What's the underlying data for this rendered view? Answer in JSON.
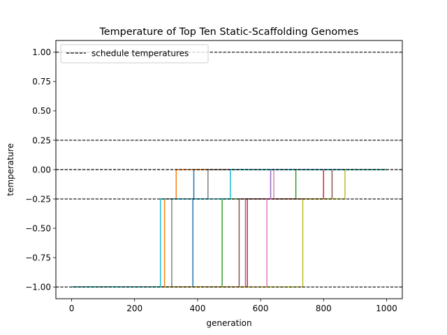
{
  "chart_data": {
    "type": "line",
    "title": "Temperature of Top Ten Static-Scaffolding Genomes",
    "xlabel": "generation",
    "ylabel": "temperature",
    "xlim": [
      -50,
      1050
    ],
    "ylim": [
      -1.1,
      1.1
    ],
    "xticks": [
      0,
      200,
      400,
      600,
      800,
      1000
    ],
    "xtick_labels": [
      "0",
      "200",
      "400",
      "600",
      "800",
      "1000"
    ],
    "yticks": [
      1.0,
      0.75,
      0.5,
      0.25,
      0.0,
      -0.25,
      -0.5,
      -0.75,
      -1.0
    ],
    "ytick_labels": [
      "1.00",
      "0.75",
      "0.50",
      "0.25",
      "0.00",
      "−0.25",
      "−0.50",
      "−0.75",
      "−1.00"
    ],
    "grid": false,
    "legend": {
      "placement": "top-left",
      "entries": [
        "schedule temperatures"
      ]
    },
    "schedule_temperatures": {
      "values": [
        1.0,
        0.25,
        0.0,
        -0.25,
        -1.0
      ],
      "color": "#000000",
      "style": "dashed"
    },
    "series": [
      {
        "color": "#1f77b4",
        "steps": [
          [
            0,
            -1.0
          ],
          [
            385,
            -0.25
          ],
          [
            388,
            0.0
          ],
          [
            1000,
            0.0
          ]
        ]
      },
      {
        "color": "#ff7f0e",
        "steps": [
          [
            0,
            -1.0
          ],
          [
            295,
            -0.25
          ],
          [
            332,
            0.0
          ],
          [
            1000,
            0.0
          ]
        ]
      },
      {
        "color": "#2ca02c",
        "steps": [
          [
            0,
            -1.0
          ],
          [
            478,
            -0.25
          ],
          [
            712,
            0.0
          ],
          [
            1000,
            0.0
          ]
        ]
      },
      {
        "color": "#d62728",
        "steps": [
          [
            0,
            -1.0
          ],
          [
            558,
            -0.25
          ],
          [
            800,
            0.0
          ],
          [
            1000,
            0.0
          ]
        ]
      },
      {
        "color": "#9467bd",
        "steps": [
          [
            0,
            -1.0
          ],
          [
            552,
            -0.25
          ],
          [
            632,
            0.0
          ],
          [
            1000,
            0.0
          ]
        ]
      },
      {
        "color": "#8c564b",
        "steps": [
          [
            0,
            -1.0
          ],
          [
            532,
            -0.25
          ],
          [
            827,
            0.0
          ],
          [
            1000,
            0.0
          ]
        ]
      },
      {
        "color": "#e377c2",
        "steps": [
          [
            0,
            -1.0
          ],
          [
            620,
            -0.25
          ],
          [
            642,
            0.0
          ],
          [
            1000,
            0.0
          ]
        ]
      },
      {
        "color": "#7f7f7f",
        "steps": [
          [
            0,
            -1.0
          ],
          [
            318,
            -0.25
          ],
          [
            433,
            0.0
          ],
          [
            1000,
            0.0
          ]
        ]
      },
      {
        "color": "#bcbd22",
        "steps": [
          [
            0,
            -1.0
          ],
          [
            734,
            -0.25
          ],
          [
            868,
            0.0
          ],
          [
            1000,
            0.0
          ]
        ]
      },
      {
        "color": "#17becf",
        "steps": [
          [
            0,
            -1.0
          ],
          [
            282,
            -0.25
          ],
          [
            504,
            0.0
          ],
          [
            1000,
            0.0
          ]
        ]
      }
    ]
  }
}
